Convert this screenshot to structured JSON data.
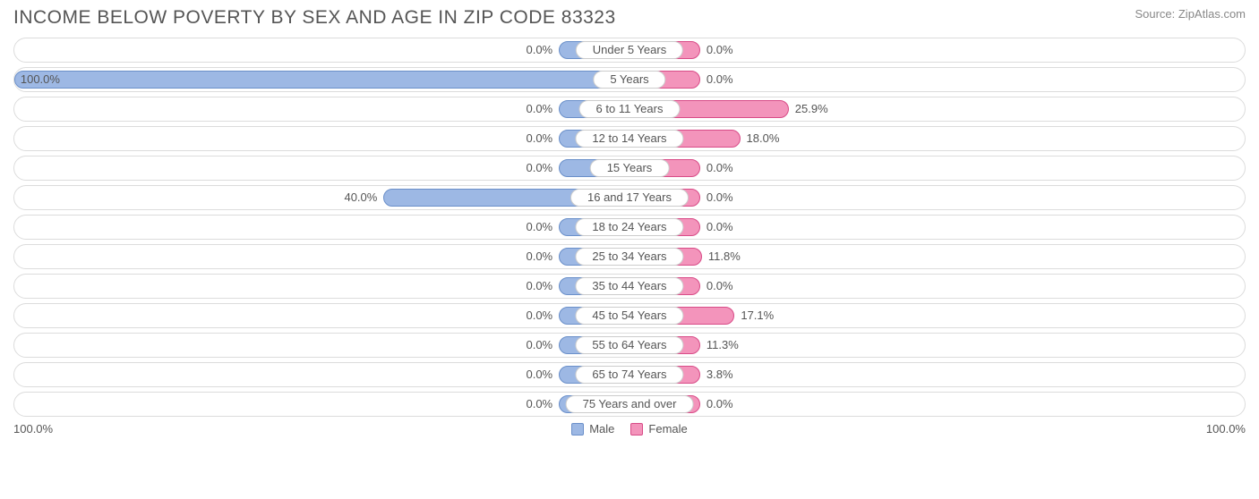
{
  "title": "INCOME BELOW POVERTY BY SEX AND AGE IN ZIP CODE 83323",
  "source": "Source: ZipAtlas.com",
  "chart": {
    "type": "diverging-bar-horizontal",
    "axis": {
      "left_label": "100.0%",
      "right_label": "100.0%",
      "max": 100.0
    },
    "min_bar_pct": 11.5,
    "colors": {
      "male_fill": "#9db8e4",
      "male_border": "#6a8fc9",
      "female_fill": "#f394bb",
      "female_border": "#d84b87",
      "track_border": "#dcdcdc",
      "text": "#555555",
      "background": "#ffffff"
    },
    "legend": {
      "male": "Male",
      "female": "Female"
    },
    "rows": [
      {
        "label": "Under 5 Years",
        "male": 0.0,
        "female": 0.0
      },
      {
        "label": "5 Years",
        "male": 100.0,
        "female": 0.0
      },
      {
        "label": "6 to 11 Years",
        "male": 0.0,
        "female": 25.9
      },
      {
        "label": "12 to 14 Years",
        "male": 0.0,
        "female": 18.0
      },
      {
        "label": "15 Years",
        "male": 0.0,
        "female": 0.0
      },
      {
        "label": "16 and 17 Years",
        "male": 40.0,
        "female": 0.0
      },
      {
        "label": "18 to 24 Years",
        "male": 0.0,
        "female": 0.0
      },
      {
        "label": "25 to 34 Years",
        "male": 0.0,
        "female": 11.8
      },
      {
        "label": "35 to 44 Years",
        "male": 0.0,
        "female": 0.0
      },
      {
        "label": "45 to 54 Years",
        "male": 0.0,
        "female": 17.1
      },
      {
        "label": "55 to 64 Years",
        "male": 0.0,
        "female": 11.3
      },
      {
        "label": "65 to 74 Years",
        "male": 0.0,
        "female": 3.8
      },
      {
        "label": "75 Years and over",
        "male": 0.0,
        "female": 0.0
      }
    ]
  }
}
